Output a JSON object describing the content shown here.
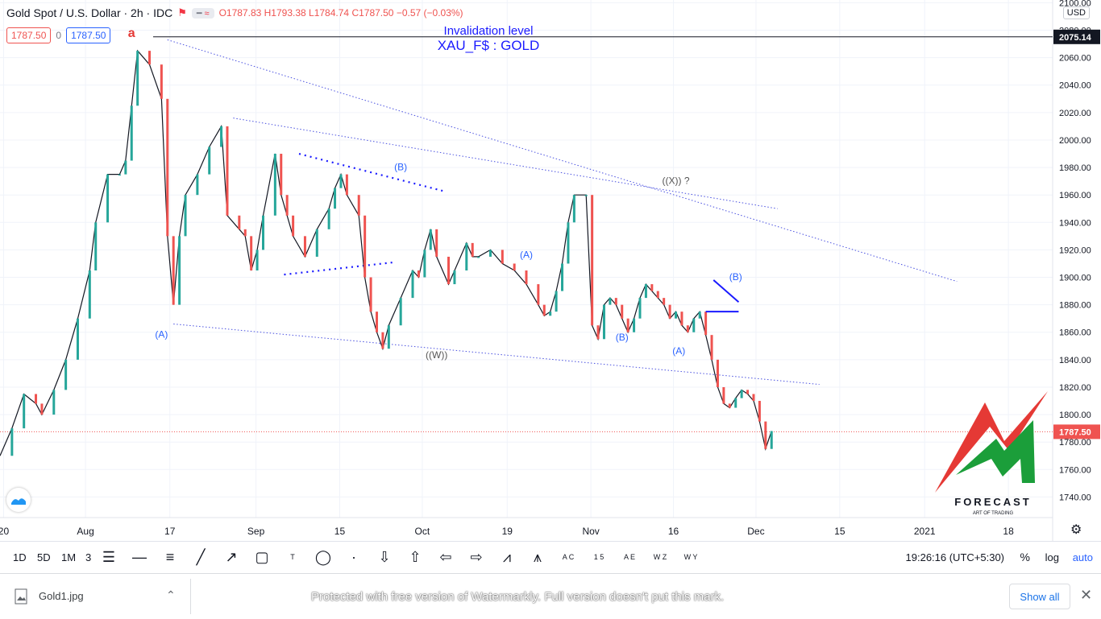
{
  "header": {
    "symbol": "Gold Spot / U.S. Dollar · 2h · IDC",
    "open": "O1787.83",
    "high": "H1793.38",
    "low": "L1784.74",
    "close": "C1787.50",
    "change": "−0.57 (−0.03%)",
    "sell_price": "1787.50",
    "spread": "0",
    "buy_price": "1787.50",
    "currency": "USD"
  },
  "chart_data": {
    "type": "line",
    "title": "XAU_F$ : GOLD",
    "ylim": [
      1725,
      2102
    ],
    "ticks_y": [
      "2100.00",
      "2080.00",
      "2060.00",
      "2040.00",
      "2020.00",
      "2000.00",
      "1980.00",
      "1960.00",
      "1940.00",
      "1920.00",
      "1900.00",
      "1880.00",
      "1860.00",
      "1840.00",
      "1820.00",
      "1800.00",
      "1780.00",
      "1760.00",
      "1740.00"
    ],
    "ticks_x": [
      "20",
      "Aug",
      "17",
      "Sep",
      "15",
      "Oct",
      "19",
      "Nov",
      "16",
      "Dec",
      "15",
      "2021",
      "18"
    ],
    "ticks_x_pos": [
      0.6,
      14.3,
      28.4,
      42.8,
      56.8,
      70.6,
      84.8,
      98.8,
      112.6,
      126.4,
      140.4,
      154.6,
      168.6
    ],
    "series": [
      {
        "x": [
          0,
          2,
          4,
          6,
          7,
          9,
          11,
          13,
          15,
          16,
          18,
          20,
          21,
          22,
          23,
          25,
          27,
          28,
          29,
          30,
          31,
          33,
          35,
          37,
          38,
          40,
          41,
          42,
          43,
          44,
          46,
          47,
          48,
          49,
          51,
          53,
          55,
          56,
          57,
          58,
          60,
          61,
          62,
          63,
          64,
          65,
          67,
          69,
          70,
          71,
          72,
          73,
          75,
          76,
          78,
          79,
          80,
          82,
          84,
          86,
          88,
          90,
          91,
          92,
          93,
          94,
          95,
          96,
          98,
          99,
          100,
          101,
          102,
          103,
          104,
          105,
          106,
          107,
          108,
          109,
          110,
          111,
          112,
          113,
          114,
          115,
          116,
          117,
          118,
          119,
          120,
          121,
          122,
          123,
          124,
          125,
          126,
          127,
          128,
          129
        ],
        "y": [
          1770,
          1790,
          1815,
          1808,
          1800,
          1818,
          1840,
          1870,
          1905,
          1940,
          1975,
          1975,
          1985,
          2025,
          2065,
          2055,
          2030,
          1930,
          1880,
          1930,
          1960,
          1975,
          1995,
          2010,
          1945,
          1935,
          1930,
          1905,
          1920,
          1945,
          1990,
          1960,
          1945,
          1930,
          1915,
          1935,
          1950,
          1965,
          1975,
          1960,
          1945,
          1900,
          1875,
          1860,
          1848,
          1865,
          1885,
          1905,
          1900,
          1920,
          1935,
          1915,
          1895,
          1905,
          1925,
          1915,
          1915,
          1920,
          1910,
          1905,
          1895,
          1880,
          1872,
          1875,
          1890,
          1910,
          1940,
          1960,
          1960,
          1865,
          1855,
          1880,
          1885,
          1880,
          1870,
          1860,
          1870,
          1885,
          1895,
          1890,
          1885,
          1880,
          1870,
          1875,
          1865,
          1860,
          1870,
          1875,
          1858,
          1840,
          1820,
          1808,
          1805,
          1812,
          1818,
          1815,
          1810,
          1795,
          1775,
          1788
        ],
        "current_price": 1787.5
      }
    ],
    "horizontal_level": {
      "value": 2075.14,
      "label": "Invalidation level"
    },
    "current_price_label": "1787.50",
    "wave_labels": [
      {
        "text": "a",
        "x": 22,
        "y": 2075,
        "color": "#e53935"
      },
      {
        "text": "(A)",
        "x": 27,
        "y": 1856,
        "color": "#2962ff"
      },
      {
        "text": "(B)",
        "x": 67,
        "y": 1978,
        "color": "#2962ff"
      },
      {
        "text": "((W))",
        "x": 73,
        "y": 1841,
        "color": "#555555"
      },
      {
        "text": "(A)",
        "x": 88,
        "y": 1914,
        "color": "#2962ff"
      },
      {
        "text": "(B)",
        "x": 104,
        "y": 1854,
        "color": "#2962ff"
      },
      {
        "text": "((X)) ?",
        "x": 113,
        "y": 1968,
        "color": "#555555"
      },
      {
        "text": "(A)",
        "x": 113.5,
        "y": 1844,
        "color": "#2962ff"
      },
      {
        "text": "(B)",
        "x": 123,
        "y": 1898,
        "color": "#2962ff"
      }
    ],
    "trendlines": [
      {
        "x": [
          28,
          160
        ],
        "y": [
          2073,
          1897
        ]
      },
      {
        "x": [
          39,
          130
        ],
        "y": [
          2016,
          1950
        ]
      },
      {
        "x": [
          29,
          137
        ],
        "y": [
          1866,
          1822
        ]
      },
      {
        "x": [
          50,
          74
        ],
        "y": [
          1990,
          1963
        ],
        "dense": true
      },
      {
        "x": [
          47.5,
          66
        ],
        "y": [
          1902,
          1911
        ],
        "dense": true
      }
    ],
    "grid": true
  },
  "branding": {
    "logo_text": "FORECAST",
    "tagline": "ART OF TRADING"
  },
  "toolbar": {
    "timeframes": [
      "1D",
      "5D",
      "1M",
      "3"
    ],
    "clock": "19:26:16 (UTC+5:30)",
    "pct_label": "%",
    "log_label": "log",
    "auto_label": "auto",
    "tools": [
      "menu-lines-icon",
      "horizontal-line-icon",
      "parallel-channel-icon",
      "trend-line-icon",
      "arrow-line-icon",
      "rectangle-icon",
      "text-icon",
      "ellipse-icon",
      "point-icon",
      "arrow-down-icon",
      "arrow-up-icon",
      "arrow-left-icon",
      "arrow-right-icon",
      "pattern-icon",
      "head-shoulders-icon",
      "abc-wave-icon",
      "impulse-wave-icon",
      "ae-wave-icon",
      "wxyz-wave-icon",
      "wy-wave-icon"
    ],
    "tool_labels": [
      "",
      "",
      "",
      "",
      "",
      "",
      "T",
      "",
      "",
      "",
      "",
      "",
      "",
      "",
      "",
      "A C",
      "1 5",
      "A E",
      "W Z",
      "W Y"
    ]
  },
  "downloads": {
    "file": "Gold1.jpg",
    "watermark": "Protected with free version of Watermarkly. Full version doesn't put this mark.",
    "show_all": "Show all"
  }
}
